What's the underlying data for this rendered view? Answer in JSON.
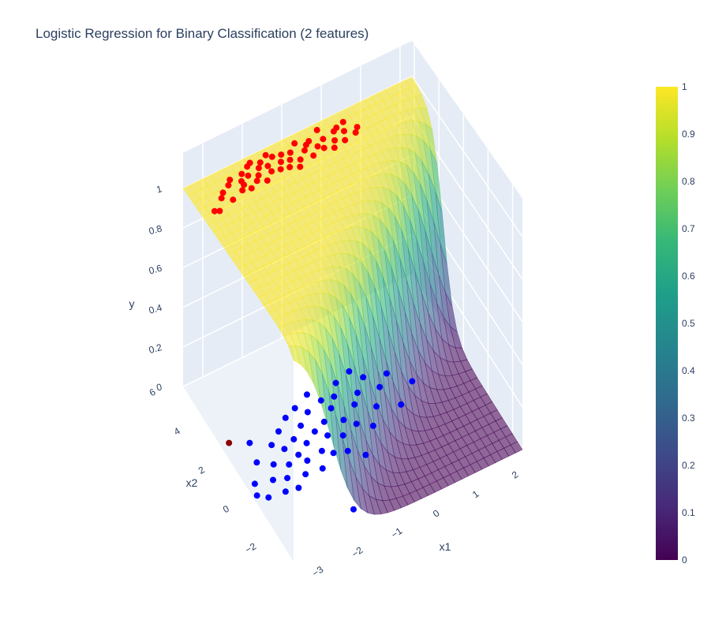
{
  "chart_data": {
    "type": "scatter",
    "subtype": "3d-surface-with-scatter",
    "title": "Logistic Regression for Binary Classification (2 features)",
    "xlabel": "x1",
    "ylabel": "x2",
    "zlabel": "y",
    "x_ticks": [
      "−3",
      "−2",
      "−1",
      "0",
      "1",
      "2"
    ],
    "y_ticks": [
      "−2",
      "0",
      "2",
      "4",
      "6"
    ],
    "z_ticks": [
      "0",
      "0.2",
      "0.4",
      "0.6",
      "0.8",
      "1"
    ],
    "xlim": [
      -3.5,
      2.3
    ],
    "ylim": [
      -2.8,
      6.2
    ],
    "zlim": [
      0,
      1
    ],
    "surface": {
      "description": "predicted probability surface",
      "colorscale": "Viridis",
      "opacity": 0.6,
      "decision_slope": 3.0,
      "midpoint_x1": 1.5
    },
    "colorbar": {
      "ticks": [
        "0",
        "0.1",
        "0.2",
        "0.3",
        "0.4",
        "0.5",
        "0.6",
        "0.7",
        "0.8",
        "0.9",
        "1"
      ],
      "range": [
        0,
        1
      ],
      "colors": [
        "#440154",
        "#482878",
        "#3e4989",
        "#31688e",
        "#26828e",
        "#1f9e89",
        "#35b779",
        "#6ece58",
        "#b5de2b",
        "#fde725"
      ]
    },
    "series": [
      {
        "color": "#ff0000",
        "z": 1,
        "points": [
          [
            -3.2,
            4.6
          ],
          [
            -3.1,
            4.5
          ],
          [
            -2.9,
            5.0
          ],
          [
            -2.8,
            5.2
          ],
          [
            -2.6,
            5.4
          ],
          [
            -2.5,
            5.6
          ],
          [
            -2.4,
            4.9
          ],
          [
            -2.3,
            5.1
          ],
          [
            -2.3,
            5.3
          ],
          [
            -2.2,
            5.6
          ],
          [
            -2.1,
            5.4
          ],
          [
            -2.0,
            5.0
          ],
          [
            -2.0,
            5.8
          ],
          [
            -1.9,
            5.2
          ],
          [
            -1.8,
            5.5
          ],
          [
            -1.8,
            4.8
          ],
          [
            -1.7,
            5.7
          ],
          [
            -1.6,
            5.1
          ],
          [
            -1.6,
            5.4
          ],
          [
            -1.5,
            5.9
          ],
          [
            -1.4,
            5.0
          ],
          [
            -1.3,
            5.3
          ],
          [
            -1.2,
            5.6
          ],
          [
            -1.2,
            4.9
          ],
          [
            -1.1,
            5.2
          ],
          [
            -1.0,
            5.5
          ],
          [
            -0.9,
            5.0
          ],
          [
            -0.8,
            5.8
          ],
          [
            -0.7,
            5.3
          ],
          [
            -0.6,
            4.9
          ],
          [
            -0.5,
            5.6
          ],
          [
            -0.4,
            5.2
          ],
          [
            -0.3,
            5.0
          ],
          [
            -0.2,
            5.4
          ],
          [
            -0.1,
            4.8
          ],
          [
            0.0,
            5.1
          ],
          [
            0.1,
            5.5
          ],
          [
            0.2,
            4.9
          ],
          [
            0.3,
            5.3
          ],
          [
            0.4,
            5.7
          ],
          [
            0.5,
            5.0
          ],
          [
            0.6,
            5.2
          ],
          [
            -2.7,
            4.7
          ],
          [
            -1.9,
            5.9
          ],
          [
            -1.0,
            4.7
          ],
          [
            -0.2,
            5.9
          ],
          [
            -2.2,
            4.8
          ],
          [
            -1.4,
            5.7
          ],
          [
            -0.6,
            5.5
          ],
          [
            0.2,
            5.6
          ]
        ]
      },
      {
        "color": "#0000ff",
        "z": 0,
        "points": [
          [
            -3.4,
            0.5
          ],
          [
            -3.3,
            1.0
          ],
          [
            -3.2,
            0.2
          ],
          [
            -3.0,
            1.8
          ],
          [
            -2.9,
            0.8
          ],
          [
            -2.8,
            0.1
          ],
          [
            -2.7,
            1.4
          ],
          [
            -2.6,
            0.6
          ],
          [
            -2.5,
            2.2
          ],
          [
            -2.5,
            0.0
          ],
          [
            -2.4,
            1.1
          ],
          [
            -2.3,
            1.8
          ],
          [
            -2.2,
            0.4
          ],
          [
            -2.2,
            2.6
          ],
          [
            -2.1,
            1.3
          ],
          [
            -2.0,
            0.9
          ],
          [
            -2.0,
            2.0
          ],
          [
            -1.9,
            3.0
          ],
          [
            -1.8,
            1.6
          ],
          [
            -1.8,
            0.3
          ],
          [
            -1.7,
            2.4
          ],
          [
            -1.6,
            1.0
          ],
          [
            -1.6,
            3.2
          ],
          [
            -1.5,
            1.9
          ],
          [
            -1.4,
            0.7
          ],
          [
            -1.4,
            2.8
          ],
          [
            -1.3,
            1.5
          ],
          [
            -1.2,
            3.5
          ],
          [
            -1.2,
            2.1
          ],
          [
            -1.1,
            0.5
          ],
          [
            -1.0,
            1.2
          ],
          [
            -1.0,
            3.0
          ],
          [
            -0.9,
            2.5
          ],
          [
            -0.8,
            1.8
          ],
          [
            -0.8,
            0.0
          ],
          [
            -0.7,
            2.9
          ],
          [
            -0.6,
            1.4
          ],
          [
            -0.5,
            3.4
          ],
          [
            -0.4,
            2.2
          ],
          [
            -0.3,
            1.0
          ],
          [
            -0.2,
            2.6
          ],
          [
            0.0,
            1.7
          ],
          [
            0.1,
            3.1
          ],
          [
            0.3,
            2.4
          ],
          [
            0.5,
            1.3
          ],
          [
            1.0,
            2.0
          ],
          [
            -1.7,
            -1.9
          ],
          [
            -2.9,
            2.7
          ],
          [
            -0.1,
            3.6
          ],
          [
            0.6,
            2.8
          ]
        ]
      },
      {
        "color": "#8b0000",
        "z": 0,
        "points": [
          [
            -3.3,
            3.1
          ]
        ]
      }
    ]
  }
}
